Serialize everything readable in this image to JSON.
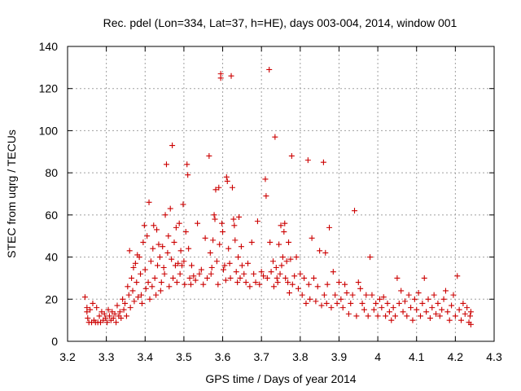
{
  "chart_data": {
    "type": "scatter",
    "title": "Rec. pdel (Lon=334, Lat=37, h=HE), days 003-004, 2014, window 001",
    "xlabel": "GPS time / Days of year 2014",
    "ylabel": "STEC from uqrg / TECUs",
    "xlim": [
      3.2,
      4.3
    ],
    "ylim": [
      0,
      140
    ],
    "xticks": [
      "3.2",
      "3.3",
      "3.4",
      "3.5",
      "3.6",
      "3.7",
      "3.8",
      "3.9",
      "4",
      "4.1",
      "4.2",
      "4.3"
    ],
    "yticks": [
      "0",
      "20",
      "40",
      "60",
      "80",
      "100",
      "120",
      "140"
    ],
    "grid": true,
    "marker": "+",
    "color": "#cc0000",
    "series": [
      {
        "name": "STEC",
        "points": [
          [
            3.245,
            21
          ],
          [
            3.25,
            16
          ],
          [
            3.25,
            14
          ],
          [
            3.252,
            11
          ],
          [
            3.255,
            9
          ],
          [
            3.258,
            15
          ],
          [
            3.262,
            9
          ],
          [
            3.265,
            18
          ],
          [
            3.268,
            10
          ],
          [
            3.272,
            9
          ],
          [
            3.275,
            16
          ],
          [
            3.278,
            9
          ],
          [
            3.282,
            12
          ],
          [
            3.285,
            9
          ],
          [
            3.288,
            14
          ],
          [
            3.292,
            10
          ],
          [
            3.295,
            13
          ],
          [
            3.298,
            11
          ],
          [
            3.302,
            9
          ],
          [
            3.305,
            15
          ],
          [
            3.308,
            12
          ],
          [
            3.312,
            10
          ],
          [
            3.315,
            14
          ],
          [
            3.318,
            11
          ],
          [
            3.322,
            13
          ],
          [
            3.325,
            9
          ],
          [
            3.328,
            17
          ],
          [
            3.332,
            12
          ],
          [
            3.335,
            14
          ],
          [
            3.338,
            11
          ],
          [
            3.342,
            20
          ],
          [
            3.345,
            15
          ],
          [
            3.348,
            18
          ],
          [
            3.352,
            12
          ],
          [
            3.355,
            26
          ],
          [
            3.358,
            22
          ],
          [
            3.36,
            43
          ],
          [
            3.362,
            16
          ],
          [
            3.365,
            30
          ],
          [
            3.368,
            24
          ],
          [
            3.37,
            35
          ],
          [
            3.372,
            19
          ],
          [
            3.375,
            37
          ],
          [
            3.378,
            28
          ],
          [
            3.38,
            41
          ],
          [
            3.382,
            21
          ],
          [
            3.385,
            40
          ],
          [
            3.388,
            32
          ],
          [
            3.39,
            22
          ],
          [
            3.392,
            18
          ],
          [
            3.395,
            47
          ],
          [
            3.398,
            55
          ],
          [
            3.4,
            34
          ],
          [
            3.402,
            25
          ],
          [
            3.405,
            50
          ],
          [
            3.408,
            28
          ],
          [
            3.41,
            66
          ],
          [
            3.412,
            20
          ],
          [
            3.415,
            38
          ],
          [
            3.418,
            26
          ],
          [
            3.42,
            44
          ],
          [
            3.422,
            55
          ],
          [
            3.425,
            30
          ],
          [
            3.428,
            22
          ],
          [
            3.43,
            53
          ],
          [
            3.432,
            36
          ],
          [
            3.435,
            46
          ],
          [
            3.438,
            40
          ],
          [
            3.44,
            24
          ],
          [
            3.442,
            28
          ],
          [
            3.445,
            45
          ],
          [
            3.448,
            35
          ],
          [
            3.45,
            32
          ],
          [
            3.452,
            60
          ],
          [
            3.455,
            84
          ],
          [
            3.458,
            42
          ],
          [
            3.46,
            50
          ],
          [
            3.462,
            26
          ],
          [
            3.465,
            63
          ],
          [
            3.468,
            39
          ],
          [
            3.47,
            93
          ],
          [
            3.472,
            30
          ],
          [
            3.475,
            47
          ],
          [
            3.478,
            36
          ],
          [
            3.48,
            54
          ],
          [
            3.482,
            28
          ],
          [
            3.485,
            37
          ],
          [
            3.488,
            56
          ],
          [
            3.49,
            32
          ],
          [
            3.492,
            43
          ],
          [
            3.495,
            36
          ],
          [
            3.498,
            65
          ],
          [
            3.5,
            38
          ],
          [
            3.502,
            27
          ],
          [
            3.505,
            52
          ],
          [
            3.508,
            84
          ],
          [
            3.51,
            79
          ],
          [
            3.512,
            44
          ],
          [
            3.515,
            30
          ],
          [
            3.518,
            27
          ],
          [
            3.52,
            36
          ],
          [
            3.525,
            31
          ],
          [
            3.53,
            29
          ],
          [
            3.535,
            56
          ],
          [
            3.54,
            32
          ],
          [
            3.545,
            34
          ],
          [
            3.55,
            27
          ],
          [
            3.555,
            49
          ],
          [
            3.56,
            30
          ],
          [
            3.565,
            88
          ],
          [
            3.568,
            42
          ],
          [
            3.57,
            32
          ],
          [
            3.572,
            35
          ],
          [
            3.575,
            48
          ],
          [
            3.578,
            60
          ],
          [
            3.58,
            58
          ],
          [
            3.582,
            72
          ],
          [
            3.585,
            38
          ],
          [
            3.588,
            27
          ],
          [
            3.59,
            73
          ],
          [
            3.592,
            46
          ],
          [
            3.595,
            127
          ],
          [
            3.595,
            125
          ],
          [
            3.598,
            56
          ],
          [
            3.6,
            52
          ],
          [
            3.602,
            34
          ],
          [
            3.605,
            36
          ],
          [
            3.608,
            29
          ],
          [
            3.61,
            78
          ],
          [
            3.612,
            76
          ],
          [
            3.615,
            44
          ],
          [
            3.618,
            37
          ],
          [
            3.62,
            30
          ],
          [
            3.622,
            126
          ],
          [
            3.625,
            73
          ],
          [
            3.628,
            58
          ],
          [
            3.63,
            55
          ],
          [
            3.632,
            48
          ],
          [
            3.635,
            33
          ],
          [
            3.638,
            28
          ],
          [
            3.64,
            40
          ],
          [
            3.642,
            59
          ],
          [
            3.645,
            30
          ],
          [
            3.648,
            45
          ],
          [
            3.65,
            36
          ],
          [
            3.655,
            32
          ],
          [
            3.66,
            28
          ],
          [
            3.665,
            37
          ],
          [
            3.67,
            26
          ],
          [
            3.675,
            47
          ],
          [
            3.68,
            32
          ],
          [
            3.685,
            28
          ],
          [
            3.69,
            57
          ],
          [
            3.695,
            27
          ],
          [
            3.7,
            33
          ],
          [
            3.705,
            31
          ],
          [
            3.71,
            77
          ],
          [
            3.712,
            69
          ],
          [
            3.715,
            30
          ],
          [
            3.72,
            129
          ],
          [
            3.722,
            47
          ],
          [
            3.725,
            33
          ],
          [
            3.73,
            38
          ],
          [
            3.732,
            26
          ],
          [
            3.735,
            97
          ],
          [
            3.738,
            35
          ],
          [
            3.74,
            30
          ],
          [
            3.742,
            28
          ],
          [
            3.745,
            46
          ],
          [
            3.748,
            32
          ],
          [
            3.75,
            55
          ],
          [
            3.752,
            36
          ],
          [
            3.755,
            40
          ],
          [
            3.758,
            52
          ],
          [
            3.76,
            56
          ],
          [
            3.762,
            30
          ],
          [
            3.765,
            38
          ],
          [
            3.768,
            28
          ],
          [
            3.77,
            47
          ],
          [
            3.772,
            23
          ],
          [
            3.775,
            39
          ],
          [
            3.778,
            88
          ],
          [
            3.78,
            27
          ],
          [
            3.785,
            31
          ],
          [
            3.79,
            40
          ],
          [
            3.795,
            25
          ],
          [
            3.8,
            32
          ],
          [
            3.805,
            22
          ],
          [
            3.81,
            30
          ],
          [
            3.815,
            18
          ],
          [
            3.82,
            86
          ],
          [
            3.822,
            27
          ],
          [
            3.825,
            20
          ],
          [
            3.83,
            49
          ],
          [
            3.835,
            30
          ],
          [
            3.84,
            19
          ],
          [
            3.845,
            26
          ],
          [
            3.85,
            43
          ],
          [
            3.855,
            17
          ],
          [
            3.86,
            85
          ],
          [
            3.862,
            22
          ],
          [
            3.865,
            42
          ],
          [
            3.868,
            18
          ],
          [
            3.87,
            27
          ],
          [
            3.875,
            54
          ],
          [
            3.88,
            16
          ],
          [
            3.885,
            33
          ],
          [
            3.89,
            22
          ],
          [
            3.895,
            18
          ],
          [
            3.9,
            28
          ],
          [
            3.905,
            20
          ],
          [
            3.91,
            16
          ],
          [
            3.915,
            27
          ],
          [
            3.92,
            23
          ],
          [
            3.925,
            13
          ],
          [
            3.93,
            18
          ],
          [
            3.935,
            22
          ],
          [
            3.94,
            62
          ],
          [
            3.945,
            12
          ],
          [
            3.95,
            28
          ],
          [
            3.955,
            25
          ],
          [
            3.96,
            18
          ],
          [
            3.965,
            15
          ],
          [
            3.97,
            22
          ],
          [
            3.975,
            12
          ],
          [
            3.98,
            40
          ],
          [
            3.985,
            22
          ],
          [
            3.99,
            15
          ],
          [
            3.995,
            18
          ],
          [
            4.0,
            12
          ],
          [
            4.005,
            20
          ],
          [
            4.01,
            16
          ],
          [
            4.015,
            21
          ],
          [
            4.02,
            12
          ],
          [
            4.025,
            18
          ],
          [
            4.03,
            14
          ],
          [
            4.035,
            10
          ],
          [
            4.04,
            16
          ],
          [
            4.045,
            12
          ],
          [
            4.05,
            30
          ],
          [
            4.055,
            18
          ],
          [
            4.06,
            24
          ],
          [
            4.065,
            14
          ],
          [
            4.07,
            19
          ],
          [
            4.075,
            12
          ],
          [
            4.08,
            22
          ],
          [
            4.085,
            16
          ],
          [
            4.09,
            10
          ],
          [
            4.095,
            20
          ],
          [
            4.1,
            15
          ],
          [
            4.105,
            23
          ],
          [
            4.11,
            12
          ],
          [
            4.115,
            18
          ],
          [
            4.12,
            30
          ],
          [
            4.125,
            14
          ],
          [
            4.13,
            20
          ],
          [
            4.135,
            11
          ],
          [
            4.14,
            16
          ],
          [
            4.145,
            22
          ],
          [
            4.15,
            13
          ],
          [
            4.155,
            18
          ],
          [
            4.16,
            12
          ],
          [
            4.165,
            15
          ],
          [
            4.17,
            20
          ],
          [
            4.175,
            24
          ],
          [
            4.18,
            14
          ],
          [
            4.185,
            10
          ],
          [
            4.19,
            17
          ],
          [
            4.195,
            22
          ],
          [
            4.2,
            12
          ],
          [
            4.205,
            31
          ],
          [
            4.21,
            15
          ],
          [
            4.215,
            10
          ],
          [
            4.22,
            18
          ],
          [
            4.225,
            13
          ],
          [
            4.23,
            16
          ],
          [
            4.235,
            9
          ],
          [
            4.238,
            12
          ],
          [
            4.24,
            14
          ],
          [
            4.24,
            8
          ]
        ]
      }
    ]
  }
}
